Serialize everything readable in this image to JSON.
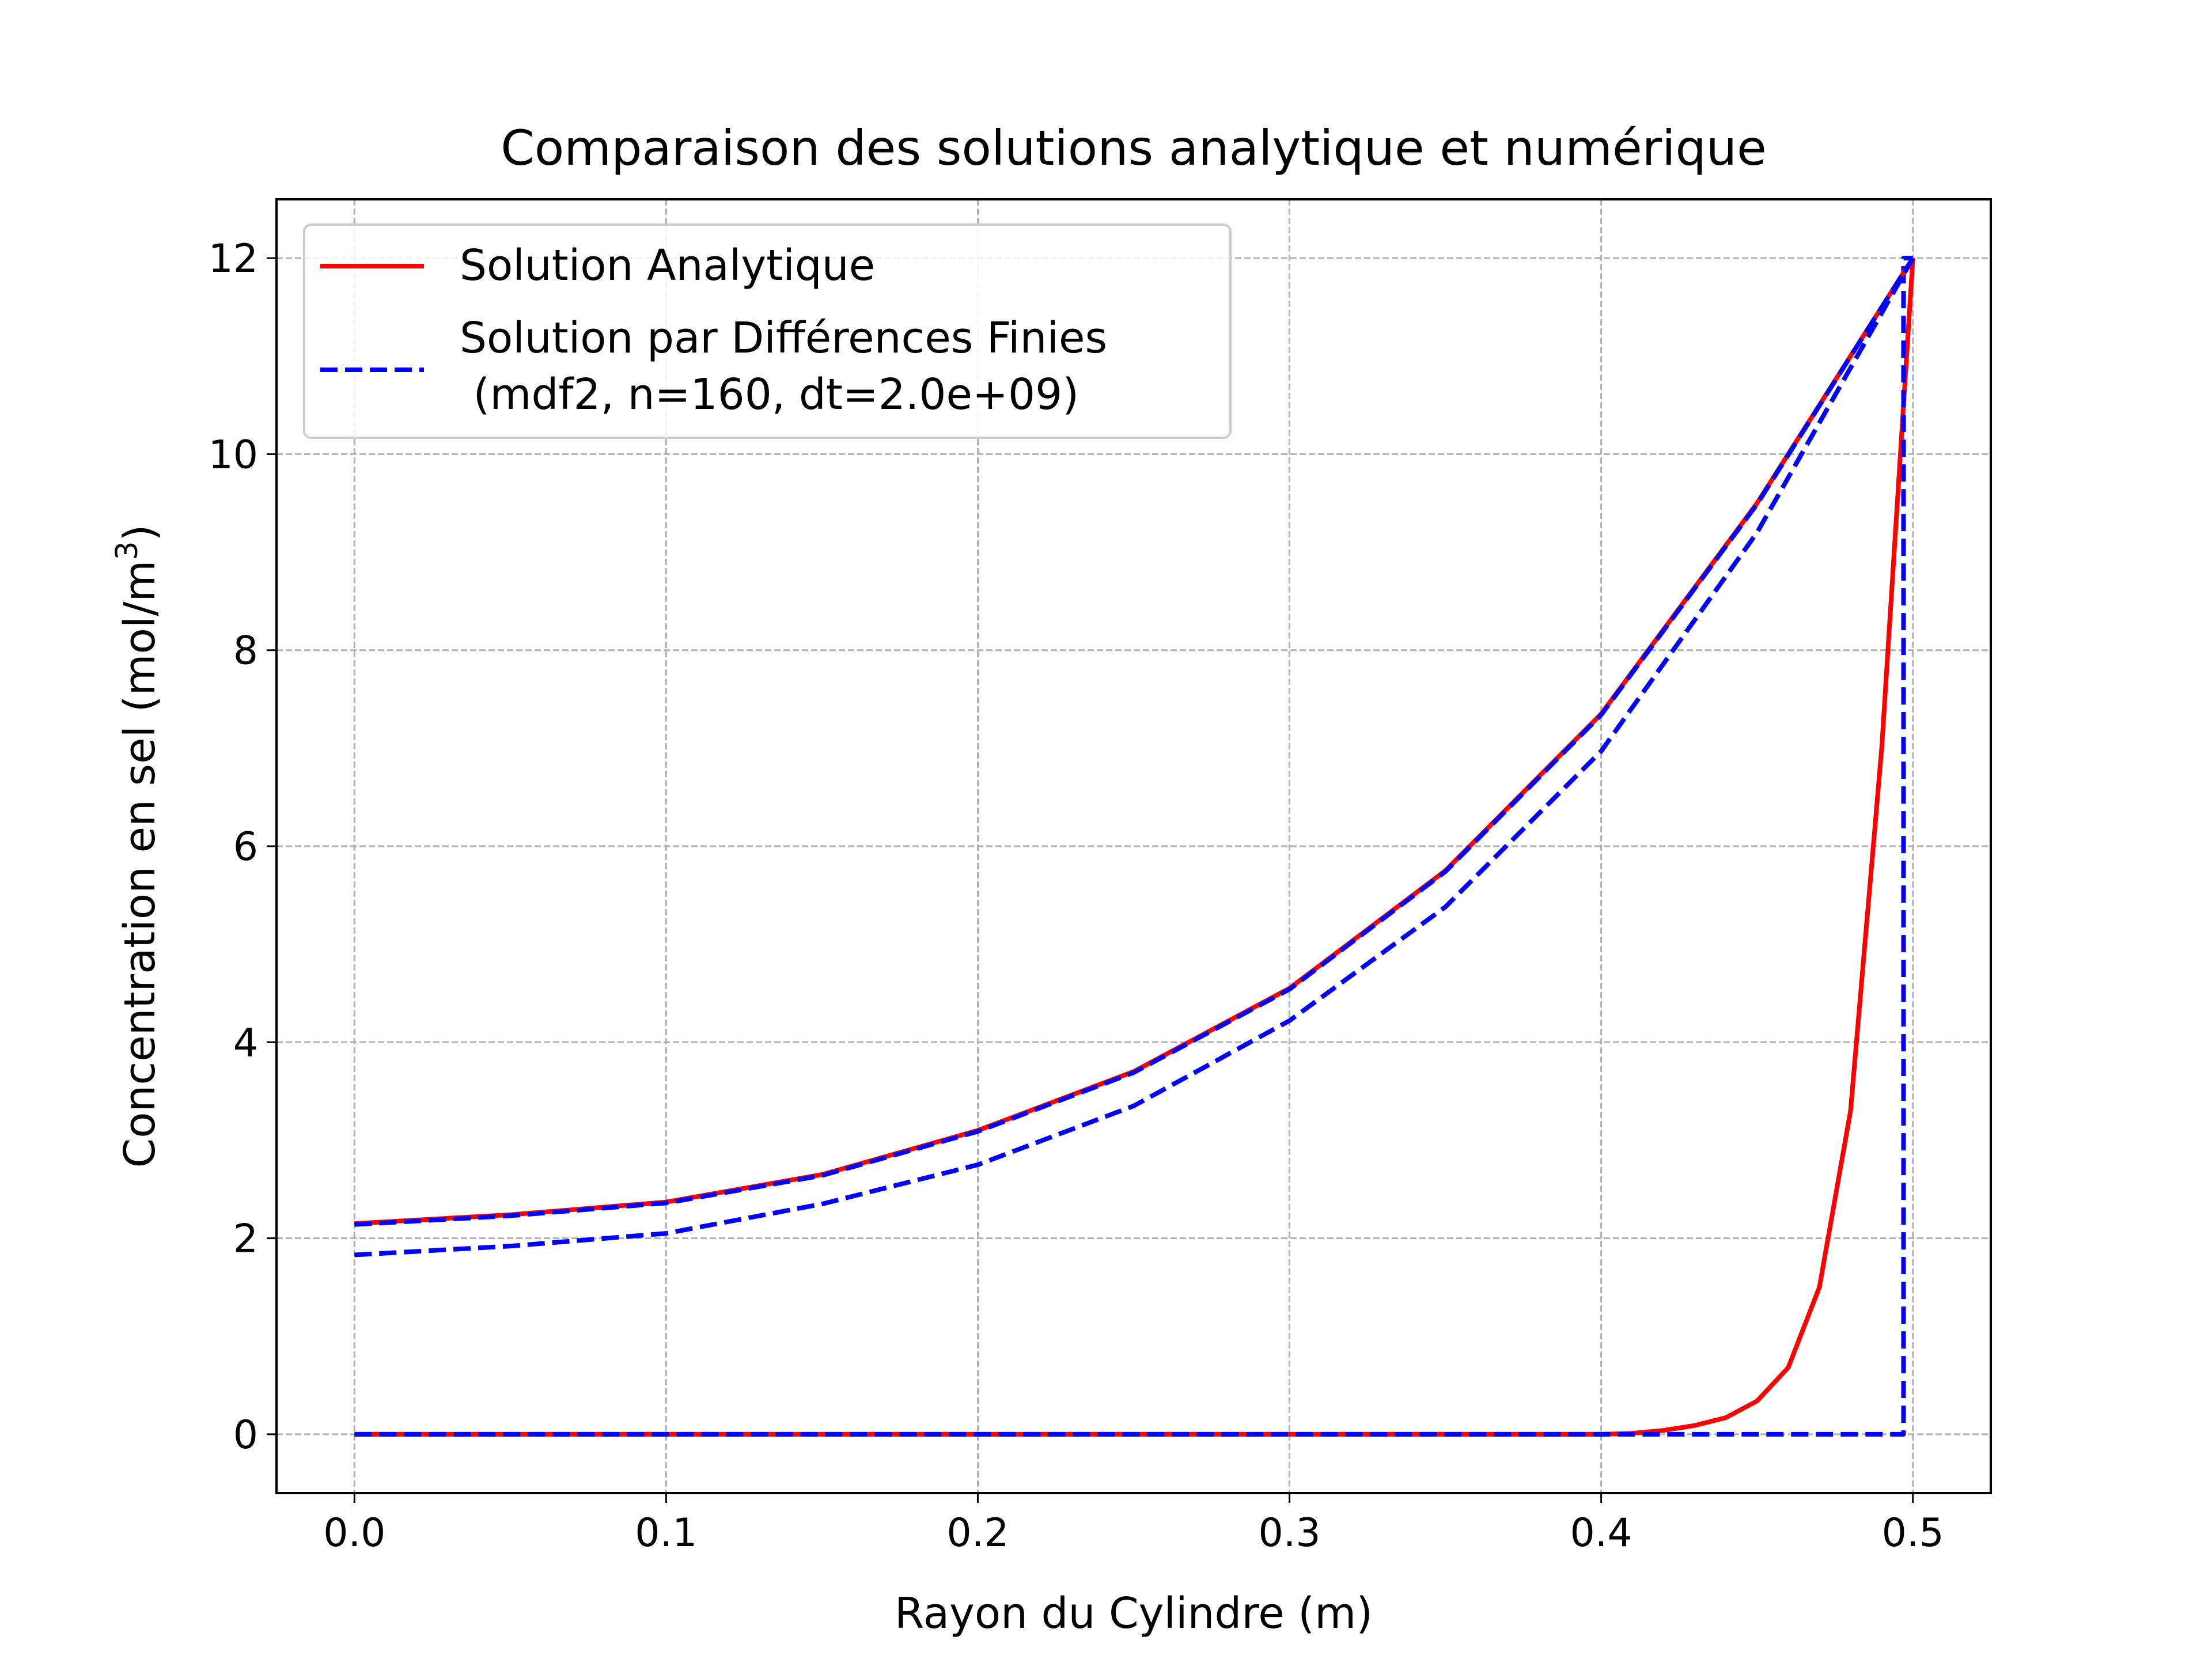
{
  "chart_data": {
    "type": "line",
    "title": "Comparaison des solutions analytique et numérique",
    "xlabel": "Rayon du Cylindre (m)",
    "ylabel": "Concentration en sel (mol/m",
    "ylabel_sup": "3",
    "ylabel_end": ")",
    "xlim": [
      -0.025,
      0.525
    ],
    "ylim": [
      -0.6,
      12.6
    ],
    "xticks": [
      0.0,
      0.1,
      0.2,
      0.3,
      0.4,
      0.5
    ],
    "xtick_labels": [
      "0.0",
      "0.1",
      "0.2",
      "0.3",
      "0.4",
      "0.5"
    ],
    "yticks": [
      0,
      2,
      4,
      6,
      8,
      10,
      12
    ],
    "ytick_labels": [
      "0",
      "2",
      "4",
      "6",
      "8",
      "10",
      "12"
    ],
    "grid": true,
    "legend_position": "upper-left",
    "colors": {
      "analytic": "#ff0000",
      "numeric": "#0000ff",
      "grid": "#b0b0b0"
    },
    "legend": [
      {
        "label": "Solution Analytique",
        "style": "solid",
        "color": "#ff0000"
      },
      {
        "label": "Solution par Différences Finies",
        "label2": " (mdf2, n=160, dt=2.0e+09)",
        "style": "dashed",
        "color": "#0000ff"
      }
    ],
    "series": [
      {
        "kind": "analytic",
        "style": "solid",
        "color": "#ff0000",
        "x": [
          0,
          0.05,
          0.1,
          0.15,
          0.2,
          0.25,
          0.3,
          0.35,
          0.4,
          0.45,
          0.5
        ],
        "y": [
          2.15,
          2.24,
          2.37,
          2.65,
          3.1,
          3.7,
          4.55,
          5.75,
          7.35,
          9.5,
          12.0
        ]
      },
      {
        "kind": "analytic",
        "style": "solid",
        "color": "#ff0000",
        "x": [
          0,
          0.1,
          0.2,
          0.3,
          0.4,
          0.41,
          0.42,
          0.43,
          0.44,
          0.45,
          0.46,
          0.47,
          0.48,
          0.49,
          0.5
        ],
        "y": [
          0,
          0,
          0,
          0,
          0,
          0.01,
          0.04,
          0.09,
          0.17,
          0.34,
          0.68,
          1.5,
          3.3,
          7.0,
          12.0
        ]
      },
      {
        "kind": "numeric",
        "style": "dashed",
        "color": "#0000ff",
        "x": [
          0,
          0.05,
          0.1,
          0.15,
          0.2,
          0.25,
          0.3,
          0.35,
          0.4,
          0.45,
          0.5
        ],
        "y": [
          2.14,
          2.23,
          2.36,
          2.64,
          3.09,
          3.69,
          4.54,
          5.74,
          7.34,
          9.49,
          12.0
        ]
      },
      {
        "kind": "numeric",
        "style": "dashed",
        "color": "#0000ff",
        "x": [
          0,
          0.05,
          0.1,
          0.15,
          0.2,
          0.25,
          0.3,
          0.35,
          0.4,
          0.45,
          0.5
        ],
        "y": [
          1.83,
          1.92,
          2.05,
          2.35,
          2.75,
          3.35,
          4.22,
          5.38,
          6.97,
          9.2,
          12.0
        ]
      },
      {
        "kind": "numeric",
        "style": "dashed",
        "color": "#0000ff",
        "x": [
          0,
          0.1,
          0.2,
          0.3,
          0.4,
          0.497,
          0.497,
          0.5
        ],
        "y": [
          0,
          0,
          0,
          0,
          0,
          0,
          12.0,
          12.0
        ]
      }
    ]
  }
}
